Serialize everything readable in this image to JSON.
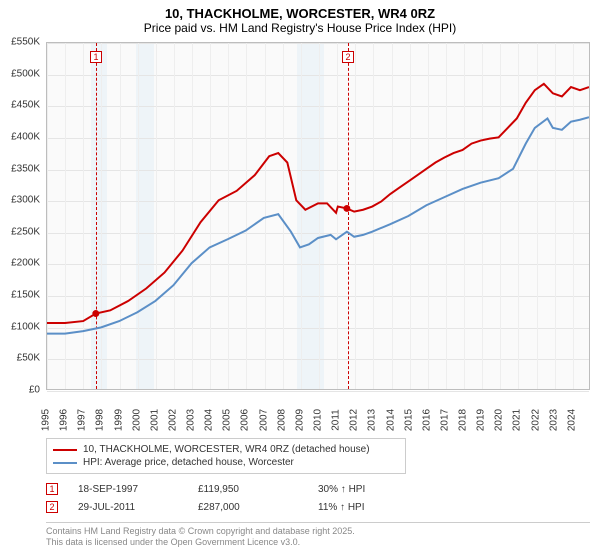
{
  "title": {
    "line1": "10, THACKHOLME, WORCESTER, WR4 0RZ",
    "line2": "Price paid vs. HM Land Registry's House Price Index (HPI)"
  },
  "chart": {
    "type": "line",
    "background_color": "#fafafa",
    "border_color": "#bdbdbd",
    "grid_color": "#e5e5e5",
    "band_color": "#e3eef5",
    "xlim": [
      1995,
      2025
    ],
    "ylim": [
      0,
      550
    ],
    "y_ticks": [
      0,
      50,
      100,
      150,
      200,
      250,
      300,
      350,
      400,
      450,
      500,
      550
    ],
    "y_tick_prefix": "£",
    "y_tick_suffix": "K",
    "x_ticks": [
      1995,
      1996,
      1997,
      1998,
      1999,
      2000,
      2001,
      2002,
      2003,
      2004,
      2005,
      2006,
      2007,
      2008,
      2009,
      2010,
      2011,
      2012,
      2013,
      2014,
      2015,
      2016,
      2017,
      2018,
      2019,
      2020,
      2021,
      2022,
      2023,
      2024
    ],
    "bands": [
      [
        1997.4,
        1998.3
      ],
      [
        1999.9,
        2000.9
      ],
      [
        2008.8,
        2010.3
      ]
    ],
    "series": [
      {
        "name": "property",
        "label": "10, THACKHOLME, WORCESTER, WR4 0RZ (detached house)",
        "color": "#cc0000",
        "line_width": 2,
        "points": [
          [
            1995,
            105
          ],
          [
            1996,
            105
          ],
          [
            1997,
            108
          ],
          [
            1997.7,
            120
          ],
          [
            1998.5,
            125
          ],
          [
            1999.5,
            140
          ],
          [
            2000.5,
            160
          ],
          [
            2001.5,
            185
          ],
          [
            2002.5,
            220
          ],
          [
            2003.5,
            265
          ],
          [
            2004.5,
            300
          ],
          [
            2005.5,
            315
          ],
          [
            2006.5,
            340
          ],
          [
            2007.3,
            370
          ],
          [
            2007.8,
            375
          ],
          [
            2008.3,
            360
          ],
          [
            2008.8,
            300
          ],
          [
            2009.3,
            285
          ],
          [
            2010,
            295
          ],
          [
            2010.5,
            295
          ],
          [
            2011,
            280
          ],
          [
            2011.1,
            290
          ],
          [
            2011.6,
            287
          ],
          [
            2012,
            282
          ],
          [
            2012.5,
            285
          ],
          [
            2013,
            290
          ],
          [
            2013.5,
            298
          ],
          [
            2014,
            310
          ],
          [
            2014.5,
            320
          ],
          [
            2015,
            330
          ],
          [
            2015.5,
            340
          ],
          [
            2016,
            350
          ],
          [
            2016.5,
            360
          ],
          [
            2017,
            368
          ],
          [
            2017.5,
            375
          ],
          [
            2018,
            380
          ],
          [
            2018.5,
            390
          ],
          [
            2019,
            395
          ],
          [
            2019.5,
            398
          ],
          [
            2020,
            400
          ],
          [
            2020.5,
            415
          ],
          [
            2021,
            430
          ],
          [
            2021.5,
            455
          ],
          [
            2022,
            475
          ],
          [
            2022.5,
            485
          ],
          [
            2023,
            470
          ],
          [
            2023.5,
            465
          ],
          [
            2024,
            480
          ],
          [
            2024.5,
            475
          ],
          [
            2025,
            480
          ]
        ]
      },
      {
        "name": "hpi",
        "label": "HPI: Average price, detached house, Worcester",
        "color": "#5b8fc7",
        "line_width": 2,
        "points": [
          [
            1995,
            88
          ],
          [
            1996,
            88
          ],
          [
            1997,
            92
          ],
          [
            1998,
            98
          ],
          [
            1999,
            108
          ],
          [
            2000,
            122
          ],
          [
            2001,
            140
          ],
          [
            2002,
            165
          ],
          [
            2003,
            200
          ],
          [
            2004,
            225
          ],
          [
            2005,
            238
          ],
          [
            2006,
            252
          ],
          [
            2007,
            272
          ],
          [
            2007.8,
            278
          ],
          [
            2008.5,
            250
          ],
          [
            2009,
            225
          ],
          [
            2009.5,
            230
          ],
          [
            2010,
            240
          ],
          [
            2010.7,
            245
          ],
          [
            2011,
            238
          ],
          [
            2011.6,
            250
          ],
          [
            2012,
            242
          ],
          [
            2012.5,
            245
          ],
          [
            2013,
            250
          ],
          [
            2014,
            262
          ],
          [
            2015,
            275
          ],
          [
            2016,
            292
          ],
          [
            2017,
            305
          ],
          [
            2018,
            318
          ],
          [
            2019,
            328
          ],
          [
            2020,
            335
          ],
          [
            2020.8,
            350
          ],
          [
            2021.5,
            390
          ],
          [
            2022,
            415
          ],
          [
            2022.7,
            430
          ],
          [
            2023,
            415
          ],
          [
            2023.5,
            412
          ],
          [
            2024,
            425
          ],
          [
            2024.5,
            428
          ],
          [
            2025,
            432
          ]
        ]
      }
    ],
    "sale_markers": [
      {
        "num": "1",
        "x": 1997.7,
        "y": 120,
        "box_top": 60
      },
      {
        "num": "2",
        "x": 2011.6,
        "y": 287,
        "box_top": 60
      }
    ],
    "sale_line_color": "#cc0000"
  },
  "legend": {
    "border_color": "#999999"
  },
  "sales_table": {
    "rows": [
      {
        "num": "1",
        "date": "18-SEP-1997",
        "price": "£119,950",
        "delta": "30% ↑ HPI"
      },
      {
        "num": "2",
        "date": "29-JUL-2011",
        "price": "£287,000",
        "delta": "11% ↑ HPI"
      }
    ]
  },
  "footer": {
    "line1": "Contains HM Land Registry data © Crown copyright and database right 2025.",
    "line2": "This data is licensed under the Open Government Licence v3.0."
  }
}
